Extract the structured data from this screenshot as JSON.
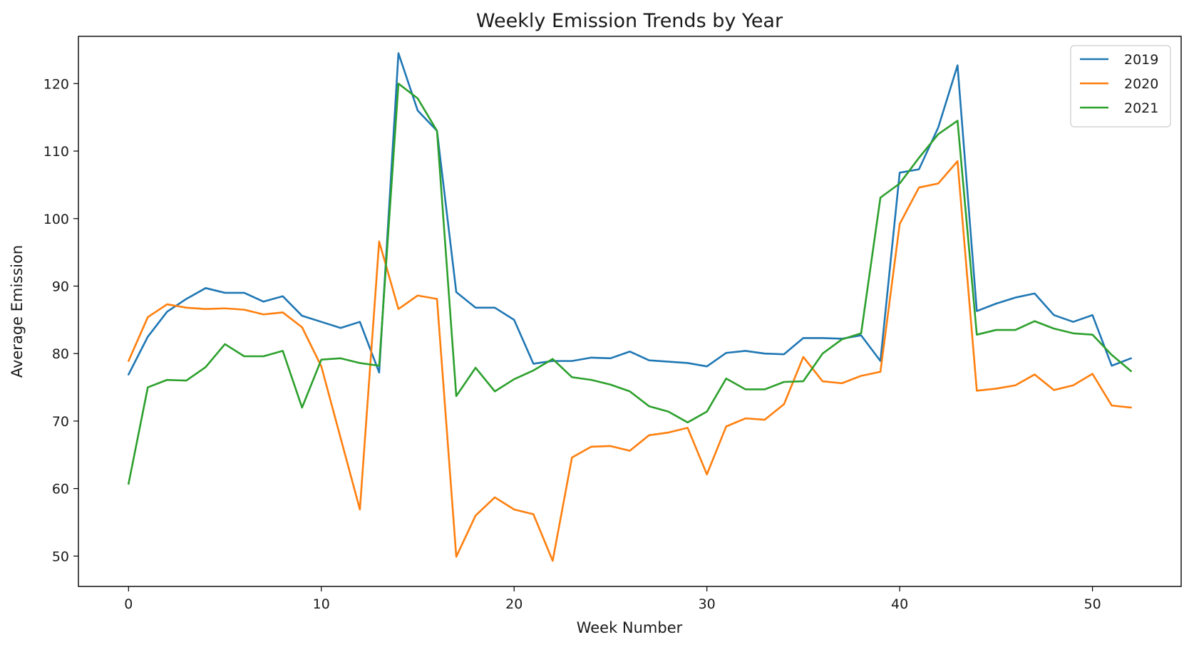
{
  "chart_data": {
    "type": "line",
    "title": "Weekly Emission Trends by Year",
    "xlabel": "Week Number",
    "ylabel": "Average Emission",
    "xlim": [
      -2.6,
      54.6
    ],
    "ylim": [
      45.5,
      127
    ],
    "xticks": [
      0,
      10,
      20,
      30,
      40,
      50
    ],
    "yticks": [
      50,
      60,
      70,
      80,
      90,
      100,
      110,
      120
    ],
    "grid": false,
    "legend_position": "top-right",
    "x": [
      0,
      1,
      2,
      3,
      4,
      5,
      6,
      7,
      8,
      9,
      10,
      11,
      12,
      13,
      14,
      15,
      16,
      17,
      18,
      19,
      20,
      21,
      22,
      23,
      24,
      25,
      26,
      27,
      28,
      29,
      30,
      31,
      32,
      33,
      34,
      35,
      36,
      37,
      38,
      39,
      40,
      41,
      42,
      43,
      44,
      45,
      46,
      47,
      48,
      49,
      50,
      51,
      52
    ],
    "series": [
      {
        "name": "2019",
        "color": "#1f77b4",
        "values": [
          76.9,
          82.5,
          86.2,
          88.1,
          89.7,
          89.0,
          89.0,
          87.7,
          88.5,
          85.6,
          84.7,
          83.8,
          84.7,
          77.2,
          124.5,
          116.0,
          113.0,
          89.1,
          86.8,
          86.8,
          85.0,
          78.5,
          78.9,
          78.9,
          79.4,
          79.3,
          80.3,
          79.0,
          78.8,
          78.6,
          78.1,
          80.1,
          80.4,
          80.0,
          79.9,
          82.3,
          82.3,
          82.2,
          82.7,
          78.9,
          106.8,
          107.3,
          113.5,
          122.7,
          86.3,
          87.4,
          88.3,
          88.9,
          85.7,
          84.7,
          85.7,
          78.2,
          79.3
        ]
      },
      {
        "name": "2020",
        "color": "#ff7f0e",
        "values": [
          78.9,
          85.4,
          87.3,
          86.8,
          86.6,
          86.7,
          86.5,
          85.8,
          86.1,
          83.9,
          78.1,
          67.5,
          56.9,
          96.6,
          86.6,
          88.6,
          88.1,
          49.9,
          56.0,
          58.7,
          56.9,
          56.2,
          49.3,
          64.6,
          66.2,
          66.3,
          65.6,
          67.9,
          68.3,
          69.0,
          62.1,
          69.2,
          70.4,
          70.2,
          72.5,
          79.5,
          75.9,
          75.6,
          76.7,
          77.3,
          99.2,
          104.6,
          105.2,
          108.5,
          74.5,
          74.8,
          75.3,
          76.9,
          74.6,
          75.3,
          77.0,
          72.3,
          72.0
        ]
      },
      {
        "name": "2021",
        "color": "#2ca02c",
        "values": [
          60.7,
          75.0,
          76.1,
          76.0,
          78.0,
          81.4,
          79.6,
          79.6,
          80.4,
          72.0,
          79.1,
          79.3,
          78.6,
          78.2,
          120.0,
          117.8,
          113.0,
          73.7,
          77.9,
          74.4,
          76.2,
          77.5,
          79.2,
          76.5,
          76.1,
          75.4,
          74.4,
          72.2,
          71.4,
          69.8,
          71.4,
          76.3,
          74.7,
          74.7,
          75.8,
          75.9,
          80.0,
          82.1,
          83.0,
          103.1,
          105.2,
          109.0,
          112.5,
          114.5,
          82.8,
          83.5,
          83.5,
          84.8,
          83.7,
          83.0,
          82.8,
          79.8,
          77.4
        ]
      }
    ]
  }
}
